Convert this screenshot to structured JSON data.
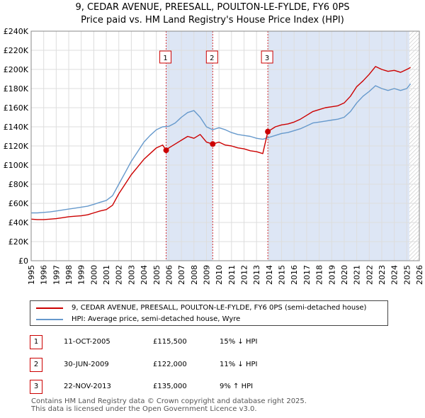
{
  "chart_data": {
    "type": "line",
    "title": "9, CEDAR AVENUE, PREESALL, POULTON-LE-FYLDE, FY6 0PS",
    "subtitle": "Price paid vs. HM Land Registry's House Price Index (HPI)",
    "xlim": [
      1995,
      2026
    ],
    "ylim": [
      0,
      240000
    ],
    "y_ticks": [
      0,
      20000,
      40000,
      60000,
      80000,
      100000,
      120000,
      140000,
      160000,
      180000,
      200000,
      220000,
      240000
    ],
    "y_tick_labels": [
      "£0",
      "£20K",
      "£40K",
      "£60K",
      "£80K",
      "£100K",
      "£120K",
      "£140K",
      "£160K",
      "£180K",
      "£200K",
      "£220K",
      "£240K"
    ],
    "x_ticks": [
      1995,
      1996,
      1997,
      1998,
      1999,
      2000,
      2001,
      2002,
      2003,
      2004,
      2005,
      2006,
      2007,
      2008,
      2009,
      2010,
      2011,
      2012,
      2013,
      2014,
      2015,
      2016,
      2017,
      2018,
      2019,
      2020,
      2021,
      2022,
      2023,
      2024,
      2025,
      2026
    ],
    "x_tick_labels": [
      "1995",
      "1996",
      "1997",
      "1998",
      "1999",
      "2000",
      "2001",
      "2002",
      "2003",
      "2004",
      "2005",
      "2006",
      "2007",
      "2008",
      "2009",
      "2010",
      "2011",
      "2012",
      "2013",
      "2014",
      "2015",
      "2016",
      "2017",
      "2018",
      "2019",
      "2020",
      "2021",
      "2022",
      "2023",
      "2024",
      "2025",
      "2026"
    ],
    "grid": true,
    "shaded_ranges": [
      [
        2005.78,
        2009.5
      ],
      [
        2013.9,
        2025.2
      ]
    ],
    "forecast_start": 2025.2,
    "series": [
      {
        "name": "9, CEDAR AVENUE, PREESALL, POULTON-LE-FYLDE, FY6 0PS (semi-detached house)",
        "color": "#cc0000",
        "x": [
          1995.0,
          1995.5,
          1996.0,
          1996.5,
          1997.0,
          1997.5,
          1998.0,
          1998.5,
          1999.0,
          1999.5,
          2000.0,
          2000.5,
          2001.0,
          2001.5,
          2002.0,
          2002.5,
          2003.0,
          2003.5,
          2004.0,
          2004.5,
          2005.0,
          2005.5,
          2005.78,
          2006.0,
          2006.5,
          2007.0,
          2007.5,
          2008.0,
          2008.5,
          2009.0,
          2009.5,
          2010.0,
          2010.5,
          2011.0,
          2011.5,
          2012.0,
          2012.5,
          2013.0,
          2013.5,
          2013.9,
          2014.5,
          2015.0,
          2015.5,
          2016.0,
          2016.5,
          2017.0,
          2017.5,
          2018.0,
          2018.5,
          2019.0,
          2019.5,
          2020.0,
          2020.5,
          2021.0,
          2021.5,
          2022.0,
          2022.5,
          2023.0,
          2023.5,
          2024.0,
          2024.5,
          2025.0,
          2025.3
        ],
        "y": [
          43500,
          43000,
          43000,
          43500,
          44000,
          45000,
          46000,
          46500,
          47000,
          48000,
          50000,
          52000,
          53500,
          58000,
          70000,
          80000,
          90000,
          98000,
          106000,
          112000,
          118000,
          121000,
          115500,
          118000,
          122000,
          126000,
          130000,
          128000,
          132000,
          124000,
          122000,
          124000,
          121000,
          120000,
          118000,
          117000,
          115000,
          114000,
          112000,
          135000,
          140000,
          142000,
          143000,
          145000,
          148000,
          152000,
          156000,
          158000,
          160000,
          161000,
          162000,
          165000,
          172000,
          182000,
          188000,
          195000,
          203000,
          200000,
          198000,
          199000,
          197000,
          200000,
          202000
        ]
      },
      {
        "name": "HPI: Average price, semi-detached house, Wyre",
        "color": "#6699cc",
        "x": [
          1995.0,
          1995.5,
          1996.0,
          1996.5,
          1997.0,
          1997.5,
          1998.0,
          1998.5,
          1999.0,
          1999.5,
          2000.0,
          2000.5,
          2001.0,
          2001.5,
          2002.0,
          2002.5,
          2003.0,
          2003.5,
          2004.0,
          2004.5,
          2005.0,
          2005.5,
          2006.0,
          2006.5,
          2007.0,
          2007.5,
          2008.0,
          2008.5,
          2009.0,
          2009.5,
          2010.0,
          2010.5,
          2011.0,
          2011.5,
          2012.0,
          2012.5,
          2013.0,
          2013.5,
          2014.0,
          2014.5,
          2015.0,
          2015.5,
          2016.0,
          2016.5,
          2017.0,
          2017.5,
          2018.0,
          2018.5,
          2019.0,
          2019.5,
          2020.0,
          2020.5,
          2021.0,
          2021.5,
          2022.0,
          2022.5,
          2023.0,
          2023.5,
          2024.0,
          2024.5,
          2025.0,
          2025.3
        ],
        "y": [
          50000,
          50000,
          50500,
          51000,
          52000,
          53000,
          54000,
          55000,
          56000,
          57000,
          59000,
          61000,
          63000,
          68000,
          80000,
          92000,
          104000,
          114000,
          124000,
          131000,
          137000,
          140000,
          140500,
          144000,
          150000,
          155000,
          157000,
          150000,
          140000,
          137000,
          139000,
          137000,
          134000,
          132000,
          131000,
          130000,
          128000,
          127000,
          129000,
          131000,
          133000,
          134000,
          136000,
          138000,
          141000,
          144000,
          145000,
          146000,
          147000,
          148000,
          150000,
          156000,
          165000,
          172000,
          177000,
          183000,
          180000,
          178000,
          180000,
          178000,
          180000,
          185000
        ]
      }
    ],
    "sales": [
      {
        "label": "1",
        "x": 2005.78,
        "y": 115500,
        "date": "11-OCT-2005",
        "price": "£115,500",
        "hpi": "15% ↓ HPI"
      },
      {
        "label": "2",
        "x": 2009.5,
        "y": 122000,
        "date": "30-JUN-2009",
        "price": "£122,000",
        "hpi": "11% ↓ HPI"
      },
      {
        "label": "3",
        "x": 2013.9,
        "y": 135000,
        "date": "22-NOV-2013",
        "price": "£135,000",
        "hpi": "9% ↑ HPI"
      }
    ],
    "legend": {
      "placement": "below",
      "entries": [
        "9, CEDAR AVENUE, PREESALL, POULTON-LE-FYLDE, FY6 0PS (semi-detached house)",
        "HPI: Average price, semi-detached house, Wyre"
      ]
    },
    "footer": "Contains HM Land Registry data © Crown copyright and database right 2025.\nThis data is licensed under the Open Government Licence v3.0."
  },
  "colors": {
    "price_line": "#cc0000",
    "hpi_line": "#6699cc",
    "shade": "#dde6f5",
    "grid": "#dddddd",
    "badge_border": "#cc0000"
  }
}
